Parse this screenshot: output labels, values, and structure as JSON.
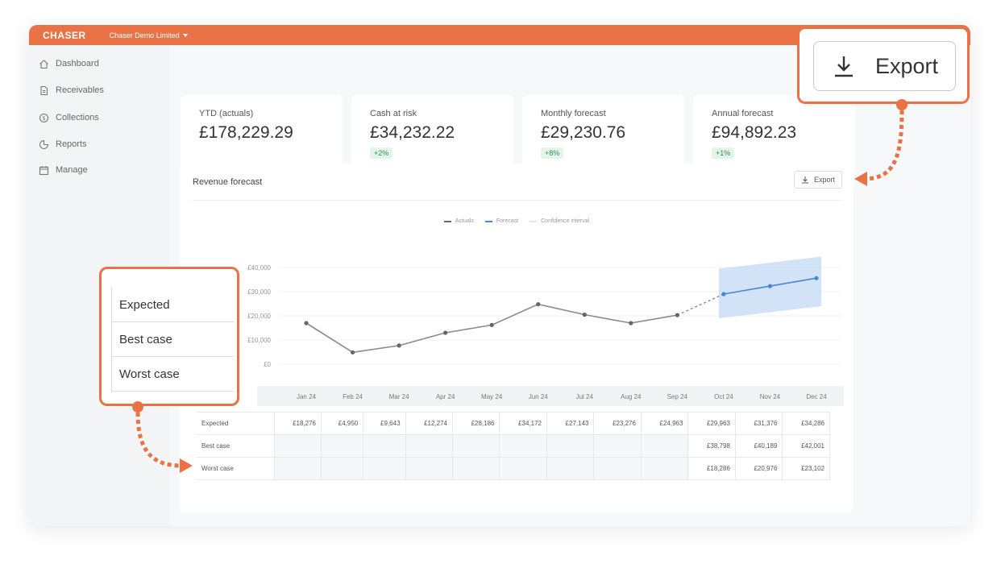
{
  "app": {
    "logo": "CHASER",
    "org": "Chaser Demo Limited"
  },
  "sidebar": {
    "items": [
      {
        "label": "Dashboard",
        "icon": "home-icon"
      },
      {
        "label": "Receivables",
        "icon": "document-icon"
      },
      {
        "label": "Collections",
        "icon": "coin-icon"
      },
      {
        "label": "Reports",
        "icon": "pie-chart-icon"
      },
      {
        "label": "Manage",
        "icon": "calendar-icon"
      }
    ]
  },
  "stats": [
    {
      "label": "YTD (actuals)",
      "value": "£178,229.29",
      "badge": ""
    },
    {
      "label": "Cash at risk",
      "value": "£34,232.22",
      "badge": "+2%"
    },
    {
      "label": "Monthly forecast",
      "value": "£29,230.76",
      "badge": "+8%"
    },
    {
      "label": "Annual forecast",
      "value": "£94,892.23",
      "badge": "+1%"
    }
  ],
  "panel": {
    "title": "Revenue forecast",
    "export_label": "Export"
  },
  "callouts": {
    "export_label": "Export",
    "scenarios": [
      "Expected",
      "Best case",
      "Worst case"
    ]
  },
  "colors": {
    "accent": "#e97246",
    "actuals": "#8a8a8a",
    "forecast": "#4a86d4",
    "confidence": "#c7dbf5"
  },
  "chart_data": {
    "type": "line",
    "legend": [
      "Actuals",
      "Forecast",
      "Confidence interval"
    ],
    "y_ticks": [
      "£40,000",
      "£30,000",
      "£20,000",
      "£10,000",
      "£0"
    ],
    "ylim": [
      0,
      40000
    ],
    "categories": [
      "Jan 24",
      "Feb 24",
      "Mar 24",
      "Apr 24",
      "May 24",
      "Jun 24",
      "Jul 24",
      "Aug 24",
      "Sep 24",
      "Oct 24",
      "Nov 24",
      "Dec 24"
    ],
    "series": [
      {
        "name": "Actuals",
        "values": [
          17000,
          4900,
          7700,
          13000,
          16200,
          24800,
          20500,
          17000,
          20300,
          null,
          null,
          null
        ]
      },
      {
        "name": "Forecast",
        "values": [
          null,
          null,
          null,
          null,
          null,
          null,
          null,
          null,
          null,
          29000,
          32300,
          35600
        ]
      }
    ],
    "confidence": {
      "low": [
        null,
        null,
        null,
        null,
        null,
        null,
        null,
        null,
        null,
        19000,
        21500,
        24000
      ],
      "high": [
        null,
        null,
        null,
        null,
        null,
        null,
        null,
        null,
        null,
        39500,
        42000,
        44500
      ]
    }
  },
  "table": {
    "rows": [
      {
        "label": "Expected",
        "values": [
          "£18,276",
          "£4,950",
          "£9,643",
          "£12,274",
          "£28,186",
          "£34,172",
          "£27,143",
          "£23,276",
          "£24,963",
          "£29,963",
          "£31,376",
          "£34,286"
        ]
      },
      {
        "label": "Best case",
        "values": [
          "",
          "",
          "",
          "",
          "",
          "",
          "",
          "",
          "",
          "£38,798",
          "£40,189",
          "£42,001"
        ]
      },
      {
        "label": "Worst case",
        "values": [
          "",
          "",
          "",
          "",
          "",
          "",
          "",
          "",
          "",
          "£18,286",
          "£20,976",
          "£23,102"
        ]
      }
    ]
  }
}
